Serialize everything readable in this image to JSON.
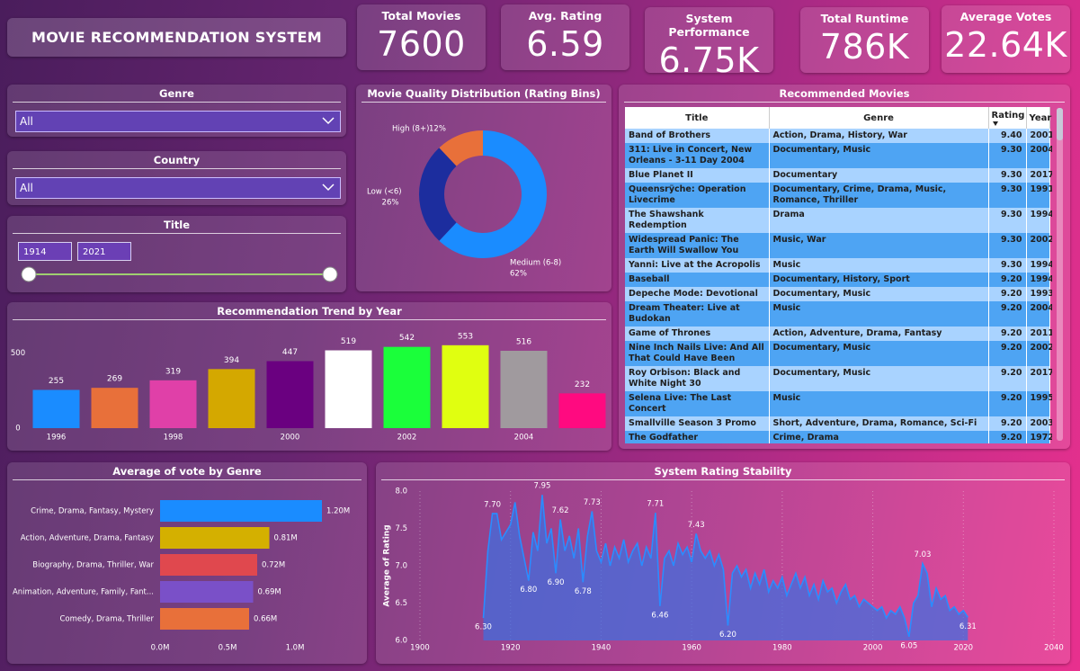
{
  "header": {
    "title": "MOVIE RECOMMENDATION SYSTEM"
  },
  "kpis": [
    {
      "label": "Total Movies",
      "value": "7600"
    },
    {
      "label": "Avg. Rating",
      "value": "6.59"
    },
    {
      "label": "System Performance",
      "value": "6.75K"
    },
    {
      "label": "Total Runtime",
      "value": "786K"
    },
    {
      "label": "Average Votes",
      "value": "22.64K"
    }
  ],
  "filters": {
    "genre": {
      "label": "Genre",
      "value": "All"
    },
    "country": {
      "label": "Country",
      "value": "All"
    },
    "title": {
      "label": "Title",
      "from": "1914",
      "to": "2021"
    }
  },
  "table": {
    "title": "Recommended Movies",
    "columns": [
      "Title",
      "Genre",
      "Rating",
      "Year"
    ],
    "rows": [
      [
        "Band of Brothers",
        "Action, Drama, History, War",
        "9.40",
        "2001"
      ],
      [
        "311: Live in Concert, New Orleans - 3-11 Day 2004",
        "Documentary, Music",
        "9.30",
        "2004"
      ],
      [
        "Blue Planet II",
        "Documentary",
        "9.30",
        "2017"
      ],
      [
        "Queensrÿche: Operation Livecrime",
        "Documentary, Crime, Drama, Music, Romance, Thriller",
        "9.30",
        "1991"
      ],
      [
        "The Shawshank Redemption",
        "Drama",
        "9.30",
        "1994"
      ],
      [
        "Widespread Panic: The Earth Will Swallow You",
        "Music, War",
        "9.30",
        "2002"
      ],
      [
        "Yanni: Live at the Acropolis",
        "Music",
        "9.30",
        "1994"
      ],
      [
        "Baseball",
        "Documentary, History, Sport",
        "9.20",
        "1994"
      ],
      [
        "Depeche Mode: Devotional",
        "Documentary, Music",
        "9.20",
        "1993"
      ],
      [
        "Dream Theater: Live at Budokan",
        "Music",
        "9.20",
        "2004"
      ],
      [
        "Game of Thrones",
        "Action, Adventure, Drama, Fantasy",
        "9.20",
        "2011"
      ],
      [
        "Nine Inch Nails Live: And All That Could Have Been",
        "Documentary, Music",
        "9.20",
        "2002"
      ],
      [
        "Roy Orbison: Black and White Night 30",
        "Documentary, Music",
        "9.20",
        "2017"
      ],
      [
        "Selena Live: The Last Concert",
        "Music",
        "9.20",
        "1995"
      ],
      [
        "Smallville Season 3 Promo",
        "Short, Adventure, Drama, Romance, Sci-Fi",
        "9.20",
        "2003"
      ],
      [
        "The Godfather",
        "Crime, Drama",
        "9.20",
        "1972"
      ]
    ]
  },
  "chart_data": [
    {
      "type": "donut",
      "title": "Movie Quality Distribution (Rating Bins)",
      "categories": [
        "Medium (6-8)",
        "Low (<6)",
        "High (8+)"
      ],
      "values": [
        62,
        26,
        12
      ],
      "value_labels": [
        "62%",
        "26%",
        "12%"
      ],
      "colors": [
        "#1a8cff",
        "#1c2d9e",
        "#e8703a"
      ]
    },
    {
      "type": "bar",
      "title": "Recommendation Trend by Year",
      "categories": [
        "1996",
        null,
        "1998",
        null,
        "2000",
        null,
        "2002",
        null,
        "2004",
        null
      ],
      "values": [
        255,
        269,
        319,
        394,
        447,
        519,
        542,
        553,
        516,
        232
      ],
      "colors": [
        "#1a8cff",
        "#e8703a",
        "#e040a8",
        "#d4a800",
        "#6a0080",
        "#ffffff",
        "#1aff3a",
        "#e0ff10",
        "#a09a9e",
        "#ff0a80"
      ],
      "ylim": [
        0,
        600
      ],
      "yticks": [
        0,
        500
      ]
    },
    {
      "type": "barh",
      "title": "Average of vote by Genre",
      "categories": [
        "Crime, Drama, Fantasy, Mystery",
        "Action, Adventure, Drama, Fantasy",
        "Biography, Drama, Thriller, War",
        "Animation, Adventure, Family, Fant...",
        "Comedy, Drama, Thriller"
      ],
      "values": [
        1200000,
        810000,
        720000,
        690000,
        660000
      ],
      "value_labels": [
        "1.20M",
        "0.81M",
        "0.72M",
        "0.69M",
        "0.66M"
      ],
      "colors": [
        "#1a8cff",
        "#d4b000",
        "#e0484e",
        "#7a50c8",
        "#e8703a"
      ],
      "xlim": [
        0,
        1400000
      ],
      "xticks": [
        {
          "value": 0,
          "label": "0.0M"
        },
        {
          "value": 500000,
          "label": "0.5M"
        },
        {
          "value": 1000000,
          "label": "1.0M"
        }
      ]
    },
    {
      "type": "area",
      "title": "System Rating Stability",
      "ylabel": "Average of Rating",
      "color": "#2a8cff",
      "grid": true,
      "x": [
        1914,
        1915,
        1916,
        1917,
        1918,
        1919,
        1920,
        1921,
        1922,
        1923,
        1924,
        1925,
        1926,
        1927,
        1928,
        1929,
        1930,
        1931,
        1932,
        1933,
        1934,
        1935,
        1936,
        1937,
        1938,
        1939,
        1940,
        1941,
        1942,
        1943,
        1944,
        1945,
        1946,
        1947,
        1948,
        1949,
        1950,
        1951,
        1952,
        1953,
        1954,
        1955,
        1956,
        1957,
        1958,
        1959,
        1960,
        1961,
        1962,
        1963,
        1964,
        1965,
        1966,
        1967,
        1968,
        1969,
        1970,
        1971,
        1972,
        1973,
        1974,
        1975,
        1976,
        1977,
        1978,
        1979,
        1980,
        1981,
        1982,
        1983,
        1984,
        1985,
        1986,
        1987,
        1988,
        1989,
        1990,
        1991,
        1992,
        1993,
        1994,
        1995,
        1996,
        1997,
        1998,
        1999,
        2000,
        2001,
        2002,
        2003,
        2004,
        2005,
        2006,
        2007,
        2008,
        2009,
        2010,
        2011,
        2012,
        2013,
        2014,
        2015,
        2016,
        2017,
        2018,
        2019,
        2020,
        2021
      ],
      "values": [
        6.3,
        7.2,
        7.7,
        7.7,
        7.35,
        7.45,
        7.55,
        7.85,
        7.4,
        7.1,
        6.8,
        7.45,
        7.2,
        7.95,
        7.3,
        7.5,
        6.9,
        7.62,
        7.2,
        7.4,
        7.1,
        7.5,
        6.78,
        7.4,
        7.73,
        7.2,
        7.05,
        7.3,
        7.0,
        7.25,
        7.1,
        7.35,
        7.05,
        7.2,
        7.3,
        7.0,
        7.25,
        7.1,
        7.71,
        6.46,
        7.1,
        7.2,
        7.0,
        7.3,
        7.15,
        7.25,
        7.05,
        7.43,
        7.2,
        7.1,
        7.2,
        7.0,
        7.15,
        6.95,
        6.2,
        6.9,
        7.0,
        6.85,
        6.95,
        6.7,
        6.9,
        6.75,
        6.95,
        6.65,
        6.8,
        6.7,
        6.85,
        6.6,
        6.75,
        6.9,
        6.7,
        6.85,
        6.6,
        6.75,
        6.55,
        6.8,
        6.65,
        6.7,
        6.5,
        6.65,
        6.75,
        6.55,
        6.6,
        6.45,
        6.55,
        6.5,
        6.45,
        6.4,
        6.45,
        6.3,
        6.4,
        6.35,
        6.45,
        6.3,
        6.05,
        6.5,
        6.6,
        7.03,
        6.9,
        6.45,
        6.7,
        6.55,
        6.6,
        6.4,
        6.45,
        6.35,
        6.4,
        6.31
      ],
      "value_labels": [
        "6.30",
        null,
        "7.70",
        null,
        null,
        null,
        null,
        null,
        null,
        null,
        "6.80",
        null,
        null,
        "7.95",
        null,
        null,
        "6.90",
        "7.62",
        null,
        null,
        null,
        null,
        "6.78",
        null,
        "7.73",
        null,
        null,
        null,
        null,
        null,
        null,
        null,
        null,
        null,
        null,
        null,
        null,
        null,
        "7.71",
        "6.46",
        null,
        null,
        null,
        null,
        null,
        null,
        null,
        "7.43",
        null,
        null,
        null,
        null,
        null,
        null,
        "6.20",
        null,
        null,
        null,
        null,
        null,
        null,
        null,
        null,
        null,
        null,
        null,
        null,
        null,
        null,
        null,
        null,
        null,
        null,
        null,
        null,
        null,
        null,
        null,
        null,
        null,
        null,
        null,
        null,
        null,
        null,
        null,
        null,
        null,
        null,
        null,
        null,
        null,
        null,
        null,
        "6.05",
        null,
        null,
        "7.03",
        null,
        null,
        null,
        null,
        null,
        null,
        null,
        null,
        null,
        "6.31"
      ],
      "xlim": [
        1900,
        2040
      ],
      "xticks": [
        1900,
        1920,
        1940,
        1960,
        1980,
        2000,
        2020,
        2040
      ],
      "ylim": [
        6,
        8
      ],
      "yticks": [
        {
          "value": 6,
          "label": "6.0"
        },
        6.5,
        {
          "value": 7,
          "label": "7.0"
        },
        7.5,
        {
          "value": 8,
          "label": "8.0"
        }
      ]
    }
  ]
}
